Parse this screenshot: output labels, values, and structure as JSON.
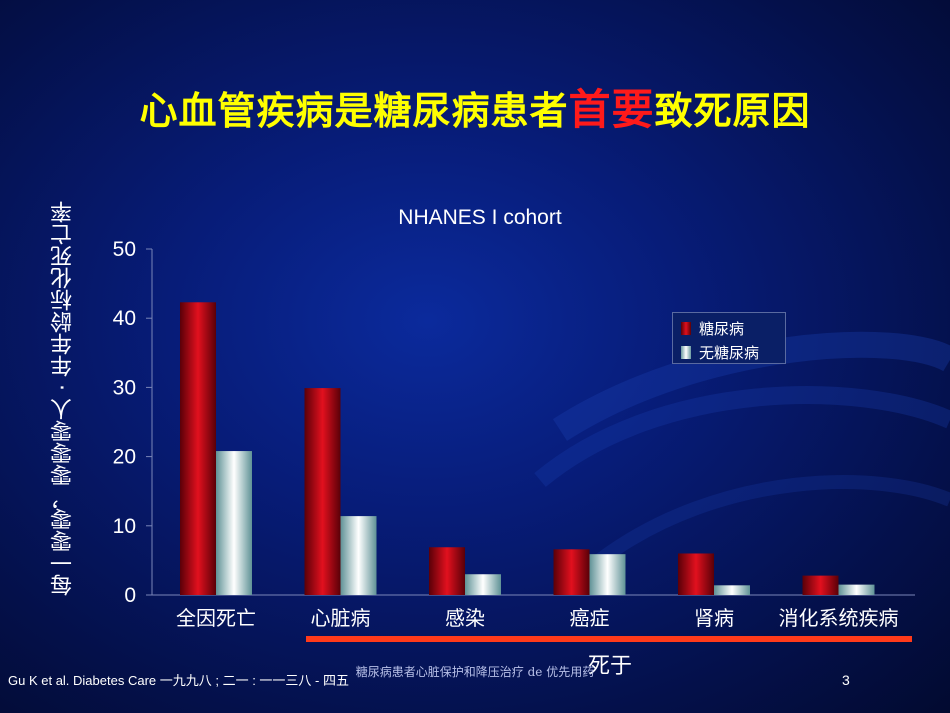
{
  "slide": {
    "title_pre": "心血管疾病是糖尿病患者",
    "title_highlight": "首要",
    "title_post": "致死原因",
    "footer_citation": "Gu K et al.  Diabetes Care  一九九八 ; 二一 : 一一三八 - 四五",
    "footer_source": "糖尿病患者心脏保护和降压治疗 de 优先用药",
    "page_number": "3",
    "death_caption": "死于"
  },
  "chart_data": {
    "type": "bar",
    "title": "NHANES I cohort",
    "ylabel_line1": "年龄标化死亡率",
    "ylabel_line2": "每一零零，零零零人 · 年",
    "xlabel": "",
    "ylim": [
      0,
      50
    ],
    "yticks": [
      0,
      10,
      20,
      30,
      40,
      50
    ],
    "categories": [
      "全因死亡",
      "心脏病",
      "感染",
      "癌症",
      "肾病",
      "消化系统疾病"
    ],
    "series": [
      {
        "name": "糖尿病",
        "values": [
          42.3,
          29.9,
          6.9,
          6.6,
          6.0,
          2.8
        ]
      },
      {
        "name": "无糖尿病",
        "values": [
          20.8,
          11.4,
          3.0,
          5.9,
          1.4,
          1.5
        ]
      }
    ],
    "legend_position": "right",
    "grid": false,
    "colors": {
      "diabetes": "#d0101c",
      "no_diabetes": "#c8e4e6"
    }
  }
}
